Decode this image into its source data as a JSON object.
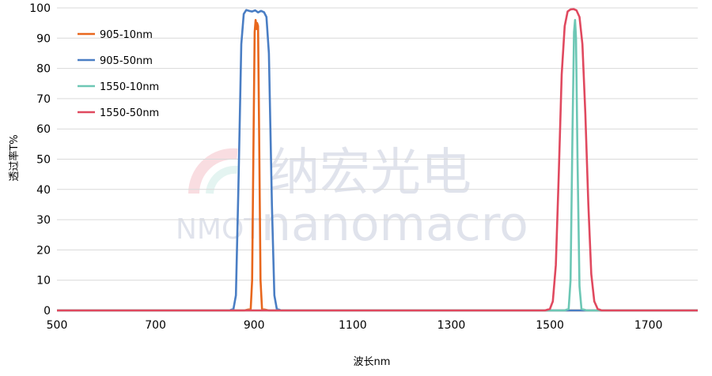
{
  "chart_data": {
    "type": "line",
    "title": "",
    "xlabel": "波长nm",
    "ylabel": "透过率T%",
    "xlim": [
      500,
      1800
    ],
    "ylim": [
      0,
      100
    ],
    "xticks": [
      500,
      700,
      900,
      1100,
      1300,
      1500,
      1700
    ],
    "yticks": [
      0,
      10,
      20,
      30,
      40,
      50,
      60,
      70,
      80,
      90,
      100
    ],
    "grid": "horizontal",
    "legend_position": "top-left",
    "series": [
      {
        "name": "905-10nm",
        "color": "#e8671d",
        "x": [
          500,
          880,
          893,
          896,
          899,
          901,
          903,
          904,
          905,
          906,
          908,
          910,
          913,
          916,
          930,
          1800
        ],
        "y": [
          0,
          0,
          0.5,
          10,
          60,
          92,
          96,
          95,
          93,
          95,
          94,
          60,
          10,
          0.5,
          0,
          0
        ]
      },
      {
        "name": "905-50nm",
        "color": "#4a7ec4",
        "x": [
          500,
          850,
          858,
          863,
          868,
          874,
          879,
          884,
          890,
          896,
          902,
          908,
          914,
          920,
          925,
          930,
          936,
          941,
          946,
          955,
          1800
        ],
        "y": [
          0,
          0,
          0.5,
          5,
          40,
          88,
          98,
          99.3,
          99,
          98.8,
          99.2,
          98.5,
          99,
          98.6,
          97,
          85,
          35,
          5,
          0.5,
          0,
          0
        ]
      },
      {
        "name": "1550-10nm",
        "color": "#6dc7b5",
        "x": [
          500,
          1530,
          1538,
          1542,
          1546,
          1549,
          1551,
          1553,
          1556,
          1560,
          1564,
          1575,
          1800
        ],
        "y": [
          0,
          0,
          0.5,
          10,
          60,
          92,
          96,
          90,
          50,
          8,
          0.5,
          0,
          0
        ]
      },
      {
        "name": "1550-50nm",
        "color": "#e0495f",
        "x": [
          500,
          1490,
          1500,
          1506,
          1512,
          1518,
          1524,
          1530,
          1536,
          1542,
          1548,
          1554,
          1560,
          1566,
          1572,
          1578,
          1584,
          1590,
          1597,
          1605,
          1620,
          1800
        ],
        "y": [
          0,
          0,
          0.5,
          3,
          15,
          45,
          78,
          94,
          98.8,
          99.5,
          99.6,
          99.2,
          97,
          88,
          65,
          35,
          12,
          3,
          0.5,
          0,
          0,
          0
        ]
      }
    ]
  },
  "watermark": {
    "cn": "纳宏光电",
    "en": "nanomacro",
    "prefix": "NMOT"
  }
}
